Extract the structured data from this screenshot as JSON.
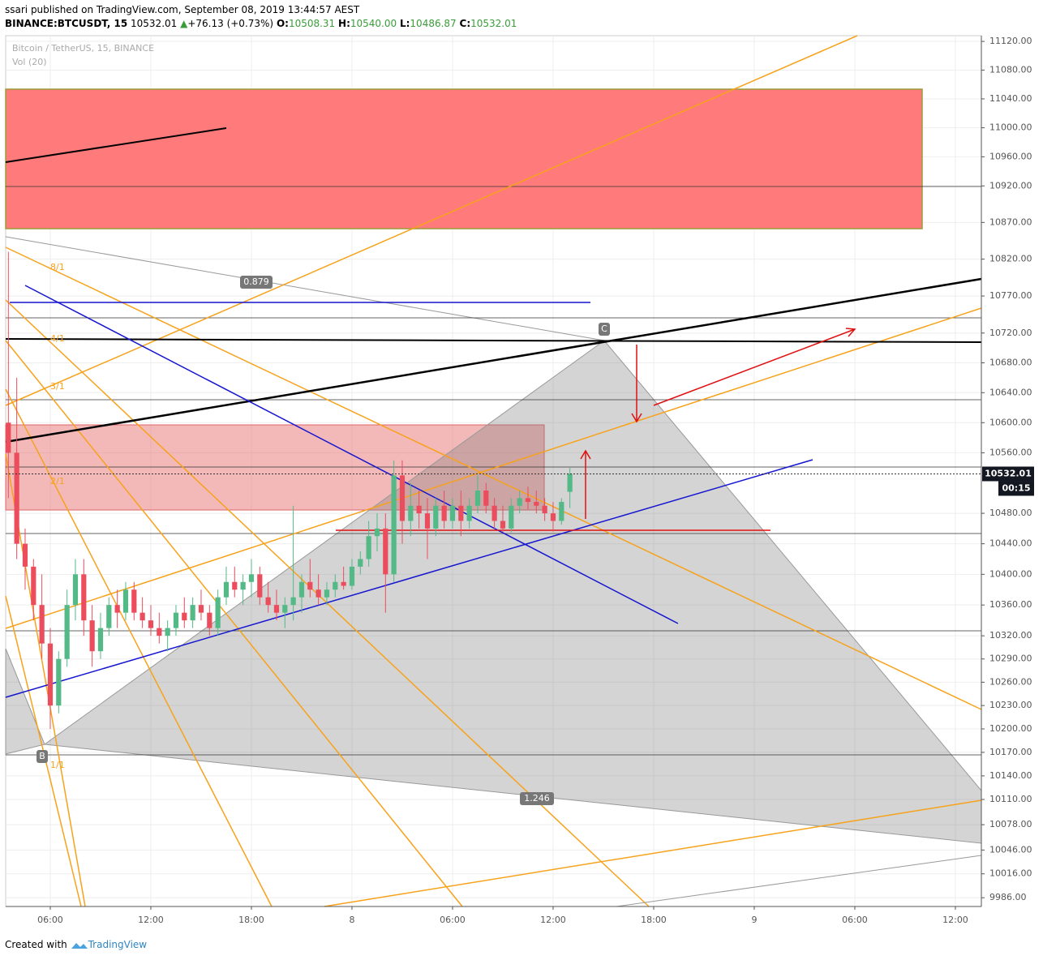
{
  "header": {
    "publisher": "ssari published on TradingView.com, September 08, 2019 13:44:57 AEST",
    "symbol": "BINANCE:BTCUSDT, 15",
    "price": "10532.01",
    "change_arrow": "▲",
    "change": "+76.13 (+0.73%)",
    "o_label": "O:",
    "o": "10508.31",
    "h_label": "H:",
    "h": "10540.00",
    "l_label": "L:",
    "l": "10486.87",
    "c_label": "C:",
    "c": "10532.01"
  },
  "footer": {
    "created": "Created with",
    "brand": "TradingView"
  },
  "chart_data": {
    "type": "candlestick",
    "title": "Bitcoin / TetherUS, 15, BINANCE",
    "indicator": "Vol (20)",
    "log_scale": true,
    "grid": true,
    "up_color": "#53b987",
    "down_color": "#eb4d5c",
    "x": [
      3.5,
      4,
      4.5,
      5,
      5.5,
      6,
      6.5,
      7,
      7.5,
      8,
      8.5,
      9,
      9.5,
      10,
      10.5,
      11,
      11.5,
      12,
      12.5,
      13,
      13.5,
      14,
      14.5,
      15,
      15.5,
      16,
      16.5,
      17,
      17.5,
      18,
      18.5,
      19,
      19.5,
      20,
      20.5,
      21,
      21.5,
      22,
      22.5,
      23,
      23.5,
      24,
      24.5,
      25,
      25.5,
      26,
      26.5,
      27,
      27.5,
      28,
      28.5,
      29,
      29.5,
      30,
      30.5,
      31,
      31.5,
      32,
      32.5,
      33,
      33.5,
      34,
      34.5,
      35,
      35.5,
      36,
      36.5,
      37
    ],
    "open": [
      10600,
      10560,
      10440,
      10410,
      10360,
      10310,
      10230,
      10290,
      10360,
      10400,
      10340,
      10300,
      10330,
      10360,
      10350,
      10380,
      10350,
      10340,
      10330,
      10320,
      10330,
      10350,
      10340,
      10360,
      10350,
      10330,
      10370,
      10390,
      10380,
      10390,
      10400,
      10370,
      10360,
      10350,
      10360,
      10370,
      10390,
      10380,
      10370,
      10380,
      10390,
      10385,
      10410,
      10420,
      10450,
      10460,
      10400,
      10530,
      10470,
      10490,
      10480,
      10460,
      10490,
      10470,
      10490,
      10470,
      10490,
      10510,
      10490,
      10470,
      10460,
      10490,
      10500,
      10495,
      10490,
      10480,
      10470,
      10508.31
    ],
    "high": [
      10830,
      10660,
      10460,
      10420,
      10400,
      10330,
      10300,
      10380,
      10420,
      10420,
      10360,
      10350,
      10370,
      10380,
      10390,
      10390,
      10370,
      10360,
      10350,
      10340,
      10360,
      10370,
      10370,
      10380,
      10360,
      10380,
      10410,
      10410,
      10400,
      10420,
      10410,
      10390,
      10380,
      10370,
      10490,
      10400,
      10420,
      10400,
      10390,
      10400,
      10410,
      10420,
      10430,
      10470,
      10480,
      10480,
      10550,
      10550,
      10520,
      10510,
      10500,
      10500,
      10510,
      10500,
      10510,
      10500,
      10530,
      10520,
      10500,
      10490,
      10500,
      10510,
      10515,
      10510,
      10500,
      10495,
      10500,
      10540
    ],
    "low": [
      10500,
      10420,
      10380,
      10340,
      10290,
      10200,
      10220,
      10280,
      10340,
      10320,
      10280,
      10290,
      10320,
      10330,
      10340,
      10340,
      10330,
      10320,
      10310,
      10300,
      10320,
      10330,
      10330,
      10340,
      10320,
      10320,
      10360,
      10370,
      10360,
      10370,
      10360,
      10350,
      10340,
      10330,
      10340,
      10350,
      10370,
      10360,
      10360,
      10370,
      10380,
      10380,
      10400,
      10410,
      10430,
      10350,
      10390,
      10440,
      10450,
      10460,
      10420,
      10450,
      10460,
      10460,
      10450,
      10460,
      10480,
      10480,
      10460,
      10455,
      10455,
      10480,
      10485,
      10480,
      10470,
      10456,
      10465,
      10486.87
    ],
    "close": [
      10560,
      10440,
      10410,
      10360,
      10310,
      10230,
      10290,
      10360,
      10400,
      10340,
      10300,
      10330,
      10360,
      10350,
      10380,
      10350,
      10340,
      10330,
      10320,
      10330,
      10350,
      10340,
      10360,
      10350,
      10330,
      10370,
      10390,
      10380,
      10390,
      10400,
      10370,
      10360,
      10350,
      10360,
      10370,
      10390,
      10380,
      10370,
      10380,
      10390,
      10385,
      10410,
      10420,
      10450,
      10460,
      10400,
      10530,
      10470,
      10490,
      10480,
      10460,
      10490,
      10470,
      10490,
      10470,
      10490,
      10510,
      10490,
      10470,
      10460,
      10490,
      10500,
      10495,
      10490,
      10480,
      10470,
      10495,
      10532.01
    ],
    "xlim": [
      3.34,
      61.55
    ],
    "xticks": [
      {
        "value": 6,
        "label": "06:00"
      },
      {
        "value": 12,
        "label": "12:00"
      },
      {
        "value": 18,
        "label": "18:00"
      },
      {
        "value": 24,
        "label": "8"
      },
      {
        "value": 30,
        "label": "06:00"
      },
      {
        "value": 36,
        "label": "12:00"
      },
      {
        "value": 42,
        "label": "18:00"
      },
      {
        "value": 48,
        "label": "9"
      },
      {
        "value": 54,
        "label": "06:00"
      },
      {
        "value": 60,
        "label": "12:00"
      }
    ],
    "ylim": [
      9975,
      11128
    ],
    "yticks": [
      {
        "value": 11120,
        "label": "11120.00"
      },
      {
        "value": 11080,
        "label": "11080.00"
      },
      {
        "value": 11040,
        "label": "11040.00"
      },
      {
        "value": 11000,
        "label": "11000.00"
      },
      {
        "value": 10960,
        "label": "10960.00"
      },
      {
        "value": 10920,
        "label": "10920.00"
      },
      {
        "value": 10870,
        "label": "10870.00"
      },
      {
        "value": 10820,
        "label": "10820.00"
      },
      {
        "value": 10770,
        "label": "10770.00"
      },
      {
        "value": 10720,
        "label": "10720.00"
      },
      {
        "value": 10680,
        "label": "10680.00"
      },
      {
        "value": 10640,
        "label": "10640.00"
      },
      {
        "value": 10600,
        "label": "10600.00"
      },
      {
        "value": 10560,
        "label": "10560.00"
      },
      {
        "value": 10480,
        "label": "10480.00"
      },
      {
        "value": 10440,
        "label": "10440.00"
      },
      {
        "value": 10400,
        "label": "10400.00"
      },
      {
        "value": 10360,
        "label": "10360.00"
      },
      {
        "value": 10320,
        "label": "10320.00"
      },
      {
        "value": 10290,
        "label": "10290.00"
      },
      {
        "value": 10260,
        "label": "10260.00"
      },
      {
        "value": 10230,
        "label": "10230.00"
      },
      {
        "value": 10200,
        "label": "10200.00"
      },
      {
        "value": 10170,
        "label": "10170.00"
      },
      {
        "value": 10140,
        "label": "10140.00"
      },
      {
        "value": 10110,
        "label": "10110.00"
      },
      {
        "value": 10078,
        "label": "10078.00"
      },
      {
        "value": 10046,
        "label": "10046.00"
      },
      {
        "value": 10016,
        "label": "10016.00"
      },
      {
        "value": 9986,
        "label": "9986.00"
      }
    ],
    "last_price": {
      "value": 10532.01,
      "label": "10532.01"
    },
    "countdown": "00:15",
    "annotations": [
      "0.879",
      "1.246",
      "C",
      "B",
      "8/1",
      "4/1",
      "3/1",
      "2/1",
      "1/1"
    ]
  }
}
